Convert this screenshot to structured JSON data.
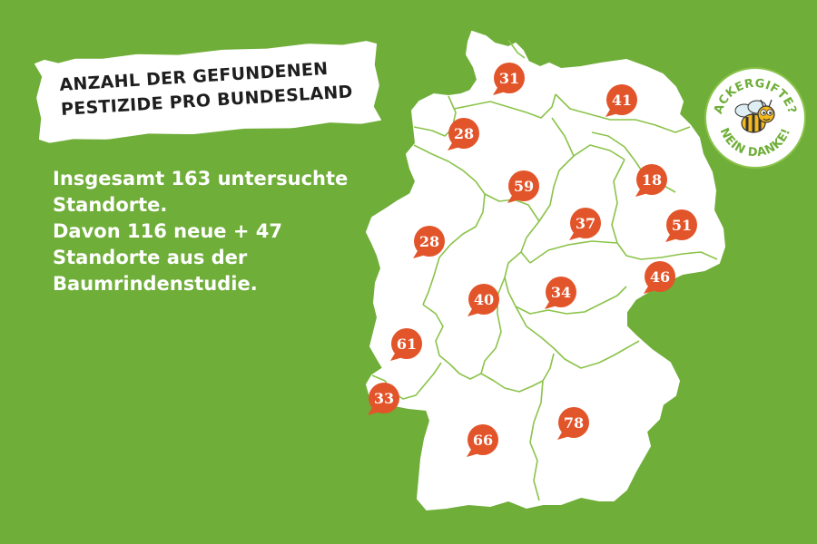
{
  "title_lines": [
    "ANZAHL DER GEFUNDENEN",
    "PESTIZIDE PRO BUNDESLAND"
  ],
  "info_lines": [
    "Insgesamt 163 untersuchte",
    "Standorte.",
    "Davon 116 neue + 47",
    "Standorte aus der",
    "Baumrindenstudie."
  ],
  "badge": {
    "top_text": "ACKERGIFTE?",
    "bottom_text": "NEIN DANKE!",
    "icon": "bee-icon"
  },
  "colors": {
    "background": "#6fae38",
    "land": "#ffffff",
    "borders": "#8bc34a",
    "marker": "#e2542a",
    "marker_text": "#ffffff"
  },
  "states": [
    {
      "id": "schleswig-holstein",
      "value": "31"
    },
    {
      "id": "mecklenburg-vorpommern",
      "value": "41"
    },
    {
      "id": "bremen",
      "value": "28"
    },
    {
      "id": "niedersachsen",
      "value": "59"
    },
    {
      "id": "berlin",
      "value": "18"
    },
    {
      "id": "brandenburg",
      "value": "51"
    },
    {
      "id": "sachsen-anhalt",
      "value": "37"
    },
    {
      "id": "nordrhein-westfalen",
      "value": "28"
    },
    {
      "id": "sachsen",
      "value": "46"
    },
    {
      "id": "thueringen",
      "value": "34"
    },
    {
      "id": "hessen",
      "value": "40"
    },
    {
      "id": "rheinland-pfalz",
      "value": "61"
    },
    {
      "id": "saarland",
      "value": "33"
    },
    {
      "id": "bayern",
      "value": "78"
    },
    {
      "id": "baden-wuerttemberg",
      "value": "66"
    }
  ]
}
